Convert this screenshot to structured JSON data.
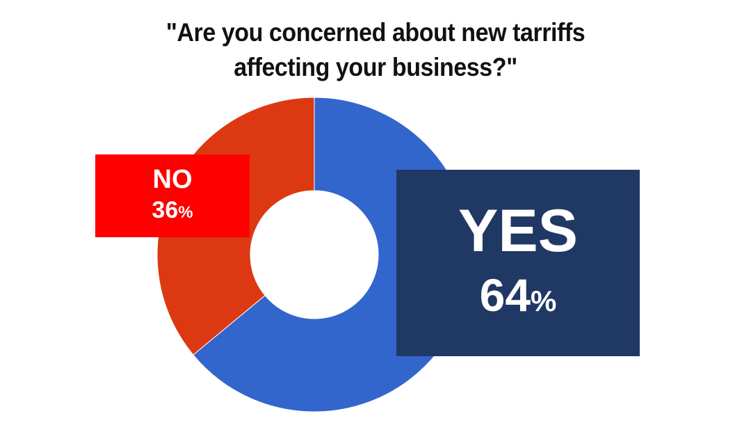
{
  "chart_data": {
    "type": "pie",
    "title_lines": [
      "\"Are you concerned about new tarriffs",
      "affecting your business?\""
    ],
    "slices": [
      {
        "label": "YES",
        "value": 64,
        "value_text": "64",
        "unit": "%",
        "color": "#3366cc",
        "box_color": "#203864"
      },
      {
        "label": "NO",
        "value": 36,
        "value_text": "36",
        "unit": "%",
        "color": "#dc3912",
        "box_color": "#ff0000"
      }
    ],
    "donut": true,
    "start_angle": "12 o'clock",
    "direction": "clockwise"
  }
}
